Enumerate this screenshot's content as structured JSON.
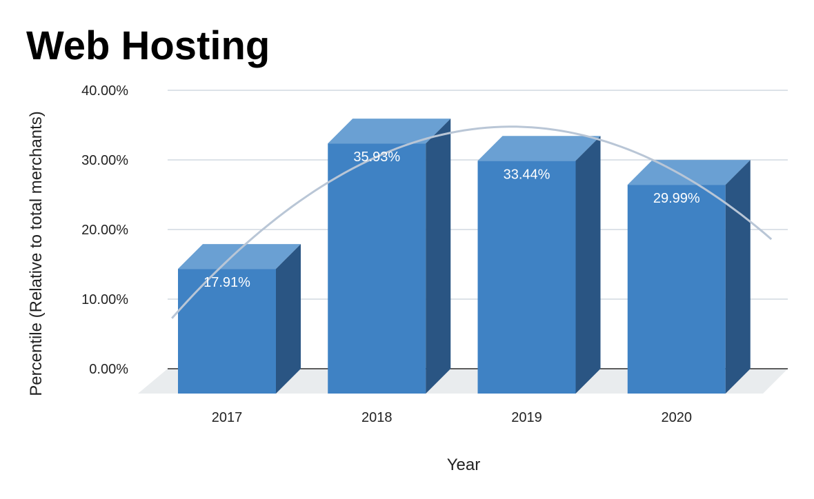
{
  "chart_data": {
    "type": "bar",
    "title": "Web Hosting",
    "xlabel": "Year",
    "ylabel": "Percentile (Relative to total merchants)",
    "categories": [
      "2017",
      "2018",
      "2019",
      "2020"
    ],
    "values": [
      17.91,
      35.93,
      33.44,
      29.99
    ],
    "data_labels": [
      "17.91%",
      "35.93%",
      "33.44%",
      "29.99%"
    ],
    "ylim": [
      0,
      40
    ],
    "yticks": [
      0,
      10,
      20,
      30,
      40
    ],
    "ytick_labels": [
      "0.00%",
      "10.00%",
      "20.00%",
      "30.00%",
      "40.00%"
    ],
    "grid": true,
    "legend": "none",
    "style": "3d-column",
    "trendline": "polynomial",
    "colors": {
      "bar_front": "#3f82c4",
      "bar_top": "#6aa0d3",
      "bar_side": "#2a5583",
      "floor": "#e9ecee",
      "grid": "#c8d0d9",
      "trendline": "#b9c6d6"
    }
  }
}
